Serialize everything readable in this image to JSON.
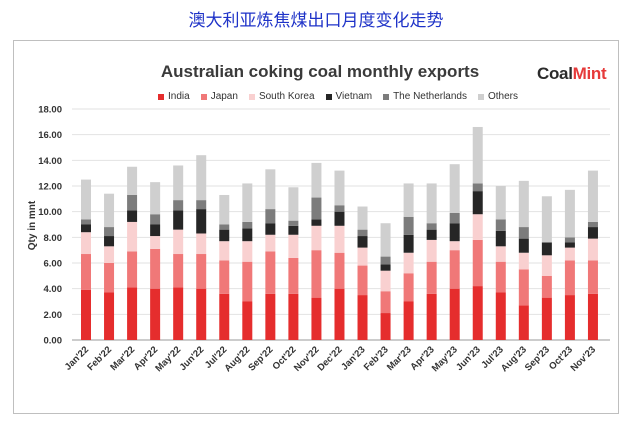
{
  "header": {
    "cn_title": "澳大利亚炼焦煤出口月度变化走势"
  },
  "brand": {
    "logo_part1": "Coal",
    "logo_part2": "Mint"
  },
  "chart_data": {
    "type": "bar",
    "stacked": true,
    "title": "Australian coking coal monthly exports",
    "ylabel": "Qty in mnt",
    "xlabel": "",
    "ylim": [
      0,
      18
    ],
    "yticks": [
      "0.00",
      "2.00",
      "4.00",
      "6.00",
      "8.00",
      "10.00",
      "12.00",
      "14.00",
      "16.00",
      "18.00"
    ],
    "grid": true,
    "legend_position": "top",
    "categories": [
      "Jan'22",
      "Feb'22",
      "Mar'22",
      "Apr'22",
      "May'22",
      "Jun'22",
      "Jul'22",
      "Aug'22",
      "Sep'22",
      "Oct'22",
      "Nov'22",
      "Dec'22",
      "Jan'23",
      "Feb'23",
      "Mar'23",
      "Apr'23",
      "May'23",
      "Jun'23",
      "Jul'23",
      "Aug'23",
      "Sep'23",
      "Oct'23",
      "Nov'23"
    ],
    "series": [
      {
        "name": "India",
        "color": "#e52d2d",
        "values": [
          3.9,
          3.7,
          4.1,
          4.0,
          4.1,
          4.0,
          3.6,
          3.0,
          3.6,
          3.6,
          3.3,
          4.0,
          3.5,
          2.1,
          3.0,
          3.6,
          4.0,
          4.2,
          3.7,
          2.7,
          3.3,
          3.5,
          3.6
        ]
      },
      {
        "name": "Japan",
        "color": "#f07878",
        "values": [
          2.8,
          2.3,
          2.8,
          3.1,
          2.6,
          2.7,
          2.6,
          3.1,
          3.3,
          2.8,
          3.7,
          2.8,
          2.3,
          1.7,
          2.2,
          2.5,
          3.0,
          3.6,
          2.4,
          2.8,
          1.7,
          2.7,
          2.6
        ]
      },
      {
        "name": "South Korea",
        "color": "#f9d0d0",
        "values": [
          1.7,
          1.3,
          2.3,
          1.0,
          1.9,
          1.6,
          1.5,
          1.6,
          1.3,
          1.8,
          1.9,
          2.1,
          1.4,
          1.6,
          1.6,
          1.7,
          0.7,
          2.0,
          1.2,
          1.3,
          1.6,
          1.0,
          1.7
        ]
      },
      {
        "name": "Vietnam",
        "color": "#262626",
        "values": [
          0.6,
          0.8,
          0.9,
          0.9,
          1.5,
          1.9,
          0.9,
          1.0,
          0.9,
          0.7,
          0.5,
          1.1,
          0.9,
          0.5,
          1.4,
          0.8,
          1.4,
          1.8,
          1.2,
          1.1,
          1.0,
          0.4,
          0.9
        ]
      },
      {
        "name": "The Netherlands",
        "color": "#7c7c7c",
        "values": [
          0.4,
          0.7,
          1.2,
          0.8,
          0.8,
          0.7,
          0.4,
          0.5,
          1.1,
          0.4,
          1.7,
          0.5,
          0.5,
          0.6,
          1.4,
          0.5,
          0.8,
          0.6,
          0.9,
          0.9,
          0.0,
          0.4,
          0.4
        ]
      },
      {
        "name": "Others",
        "color": "#cfcfcf",
        "values": [
          3.1,
          2.6,
          2.2,
          2.5,
          2.7,
          3.5,
          2.3,
          3.0,
          3.1,
          2.6,
          2.7,
          2.7,
          1.8,
          2.6,
          2.6,
          3.1,
          3.8,
          4.4,
          2.6,
          3.6,
          3.6,
          3.7,
          4.0
        ]
      }
    ]
  }
}
